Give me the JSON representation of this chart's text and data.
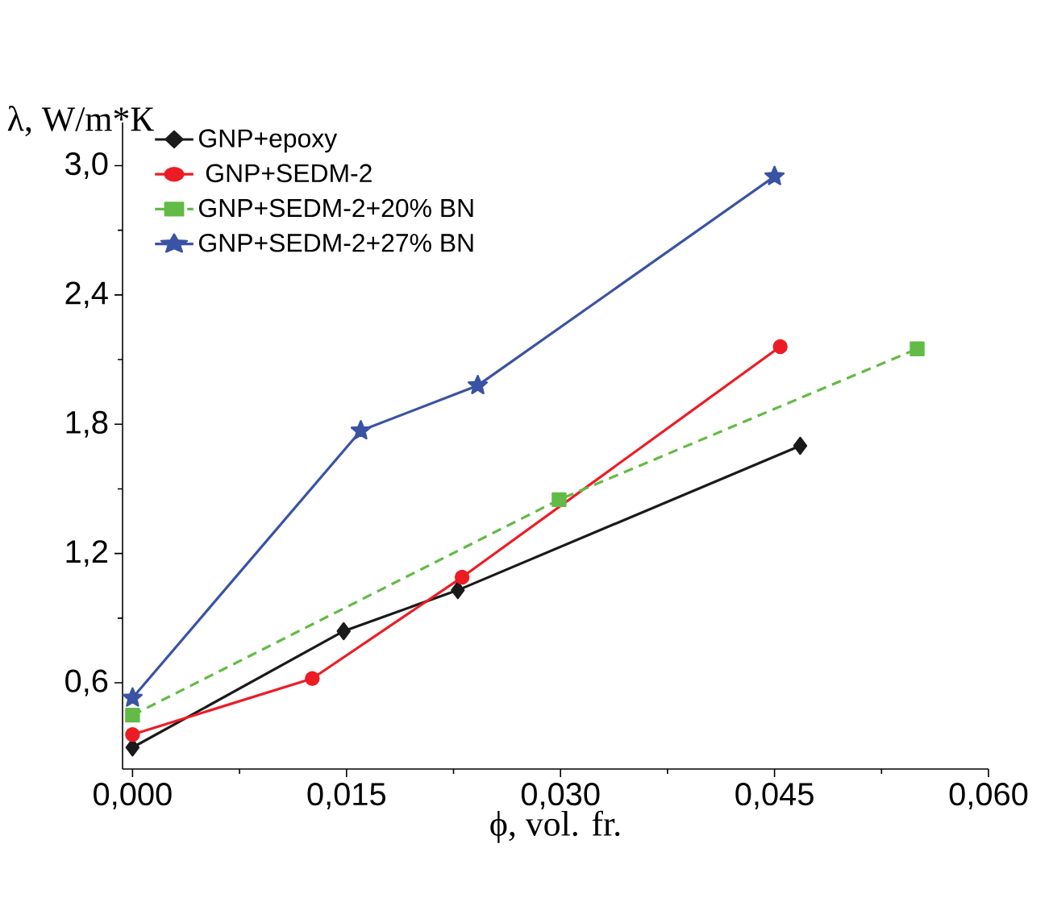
{
  "chart_data": {
    "type": "line",
    "xlabel": "ϕ, vol. fr.",
    "ylabel": "λ, W/m*К",
    "xlim": [
      -0.0007,
      0.06
    ],
    "ylim": [
      0.2,
      3.2
    ],
    "xticks": [
      {
        "value": 0,
        "label": "0,000"
      },
      {
        "value": 0.015,
        "label": "0,015"
      },
      {
        "value": 0.03,
        "label": "0,030"
      },
      {
        "value": 0.045,
        "label": "0,045"
      },
      {
        "value": 0.06,
        "label": "0,060"
      }
    ],
    "yticks": [
      {
        "value": 0.6,
        "label": "0,6"
      },
      {
        "value": 1.2,
        "label": "1,2"
      },
      {
        "value": 1.8,
        "label": "1,8"
      },
      {
        "value": 2.4,
        "label": "2,4"
      },
      {
        "value": 3.0,
        "label": "3,0"
      }
    ],
    "grid": false,
    "legend": "top left",
    "series": [
      {
        "name": "GNP+epoxy",
        "color": "#1a1a1a",
        "marker": "diamond",
        "line_style": "solid",
        "x": [
          0,
          0.0148,
          0.0228,
          0.0468
        ],
        "values": [
          0.3,
          0.84,
          1.03,
          1.7
        ]
      },
      {
        "name": " GNP+SEDM-2",
        "color": "#ed1c24",
        "marker": "circle",
        "line_style": "solid",
        "x": [
          0,
          0.0126,
          0.0231,
          0.0454
        ],
        "values": [
          0.36,
          0.62,
          1.09,
          2.16
        ]
      },
      {
        "name": "GNP+SEDM-2+20% BN",
        "color": "#62bb46",
        "marker": "square",
        "line_style": "dashed",
        "x": [
          0,
          0.0299,
          0.055
        ],
        "values": [
          0.45,
          1.45,
          2.15
        ]
      },
      {
        "name": "GNP+SEDM-2+27% BN",
        "color": "#3a53a4",
        "marker": "star",
        "line_style": "solid",
        "x": [
          0,
          0.016,
          0.0242,
          0.045
        ],
        "values": [
          0.53,
          1.77,
          1.98,
          2.95
        ]
      }
    ]
  }
}
